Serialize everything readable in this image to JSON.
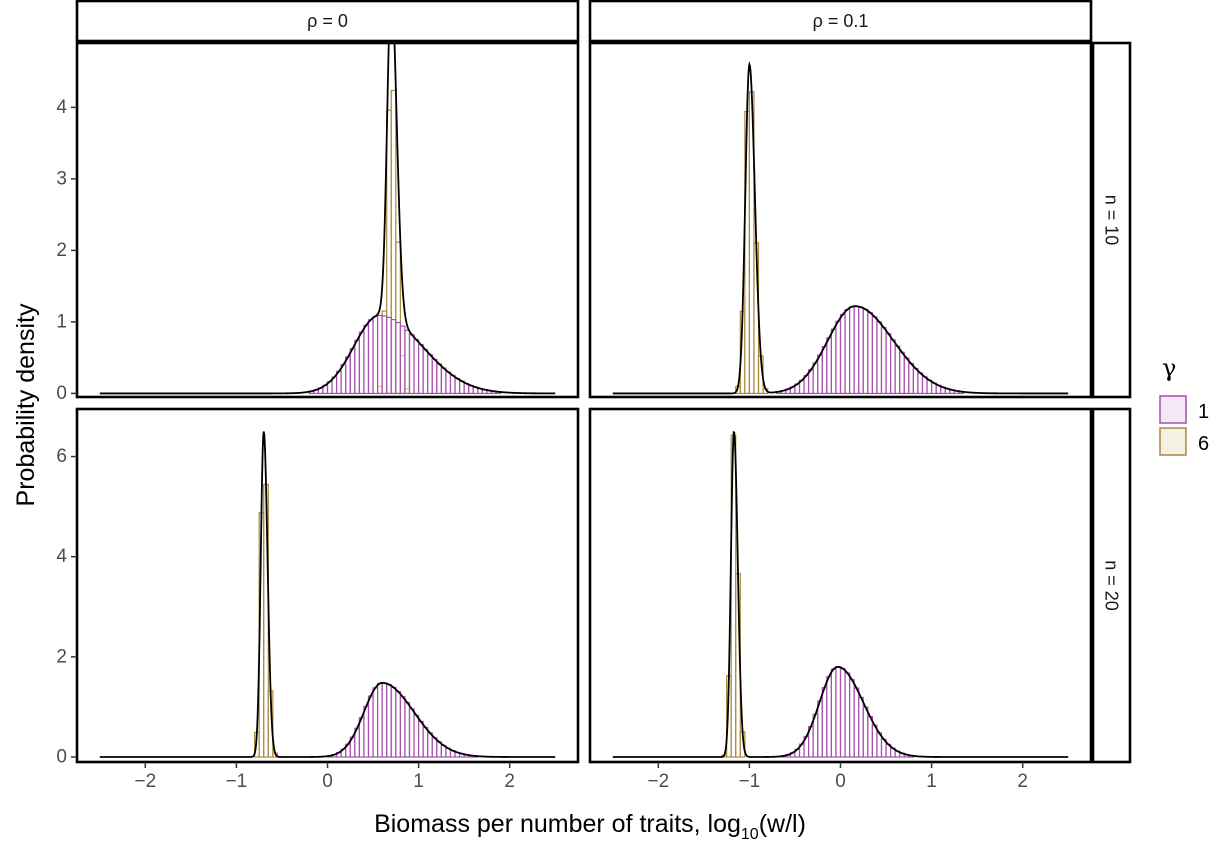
{
  "chart_data": {
    "type": "bar",
    "subtype": "faceted-histogram-with-density-curves",
    "xlabel": {
      "main": "Biomass per number of traits, log",
      "subscript": "10",
      "suffix": "(w/l)"
    },
    "ylabel": "Probability density",
    "xlim": [
      -2.75,
      2.75
    ],
    "x_ticks": [
      -2,
      -1,
      0,
      1,
      2
    ],
    "x_tick_labels": [
      "−2",
      "−1",
      "0",
      "1",
      "2"
    ],
    "facet_columns": [
      "ρ = 0",
      "ρ = 0.1"
    ],
    "facet_rows": [
      "n = 10",
      "n = 20"
    ],
    "row_ylims": [
      [
        -0.05,
        4.9
      ],
      [
        -0.1,
        6.95
      ]
    ],
    "row_y_ticks": [
      [
        0,
        1,
        2,
        3,
        4
      ],
      [
        0,
        2,
        4,
        6
      ]
    ],
    "row_y_tick_labels": [
      [
        "0",
        "1",
        "2",
        "3",
        "4"
      ],
      [
        "0",
        "2",
        "4",
        "6"
      ]
    ],
    "legend": {
      "title": "γ",
      "position": "right",
      "entries": [
        {
          "label": "1",
          "fill": "#f3e9f4",
          "stroke": "#a64fad"
        },
        {
          "label": "6",
          "fill": "#f4f0e3",
          "stroke": "#a88a3c"
        }
      ]
    },
    "series_colors": {
      "1": "#a64fad",
      "6": "#a88a3c"
    },
    "curve_color": "#000000",
    "x_support": [
      -2.5,
      2.5
    ],
    "bin_width": 0.05,
    "panels": [
      {
        "row": 0,
        "col": 0,
        "series": [
          {
            "name": "6",
            "mode": 0.7,
            "peak": 4.62,
            "left_width": 0.045,
            "right_width": 0.06
          },
          {
            "name": "1",
            "mode": 0.57,
            "peak": 1.09,
            "left_width": 0.28,
            "right_width": 0.47
          }
        ]
      },
      {
        "row": 0,
        "col": 1,
        "series": [
          {
            "name": "6",
            "mode": -1.0,
            "peak": 4.6,
            "left_width": 0.045,
            "right_width": 0.06
          },
          {
            "name": "1",
            "mode": 0.16,
            "peak": 1.22,
            "left_width": 0.3,
            "right_width": 0.42
          }
        ]
      },
      {
        "row": 1,
        "col": 0,
        "series": [
          {
            "name": "6",
            "mode": -0.7,
            "peak": 6.5,
            "left_width": 0.033,
            "right_width": 0.042
          },
          {
            "name": "1",
            "mode": 0.6,
            "peak": 1.48,
            "left_width": 0.2,
            "right_width": 0.35
          }
        ]
      },
      {
        "row": 1,
        "col": 1,
        "series": [
          {
            "name": "6",
            "mode": -1.17,
            "peak": 6.5,
            "left_width": 0.033,
            "right_width": 0.042
          },
          {
            "name": "1",
            "mode": -0.03,
            "peak": 1.8,
            "left_width": 0.2,
            "right_width": 0.28
          }
        ]
      }
    ]
  }
}
